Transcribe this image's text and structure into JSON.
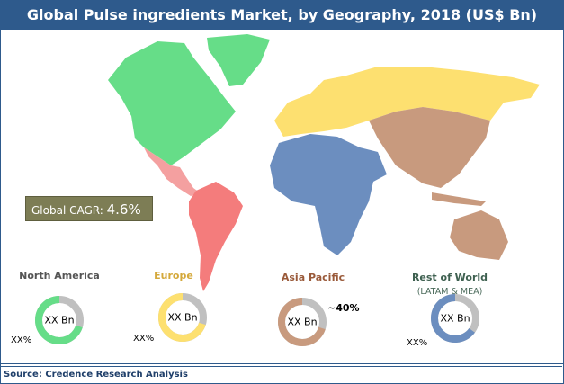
{
  "title": "Global Pulse ingredients Market, by Geography, 2018 (US$ Bn)",
  "cagr": {
    "label": "Global CAGR:",
    "value": "4.6%"
  },
  "regions": [
    {
      "name": "North America",
      "center": "XX Bn",
      "pct_label": "XX%",
      "share": 0.7,
      "color": "#66dd88",
      "label_color": "#555555"
    },
    {
      "name": "Europe",
      "center": "XX Bn",
      "pct_label": "XX%",
      "share": 0.7,
      "color": "#fde070",
      "label_color": "#d4a83a"
    },
    {
      "name": "Asia Pacific",
      "center": "XX Bn",
      "pct_label": "~40%",
      "share": 0.7,
      "color": "#c89a7e",
      "label_color": "#9a5a3a"
    },
    {
      "name": "Rest of World",
      "subtitle": "(LATAM & MEA)",
      "center": "XX Bn",
      "pct_label": "XX%",
      "share": 0.65,
      "color": "#6c8ebf",
      "label_color": "#3e6050"
    }
  ],
  "remainder_color": "#c0c0c0",
  "map_colors": {
    "north_america": "#66dd88",
    "central_america": "#f4a0a0",
    "south_america": "#f47c7c",
    "europe": "#fde070",
    "africa_middle_east": "#6c8ebf",
    "asia_pacific": "#c89a7e"
  },
  "source": "Source: Credence Research Analysis"
}
